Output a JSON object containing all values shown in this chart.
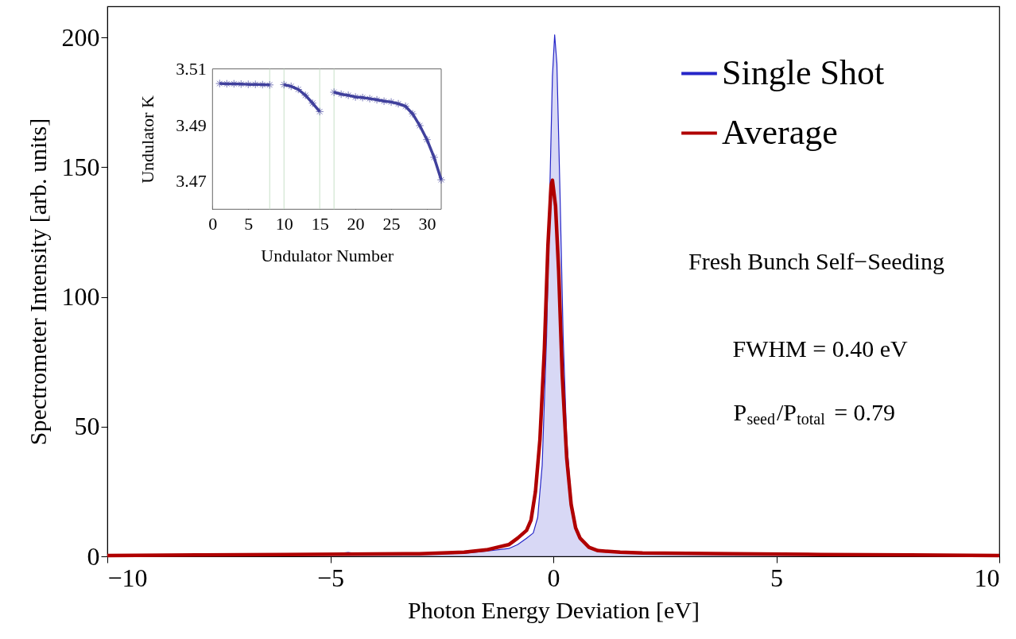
{
  "chart_data": [
    {
      "type": "line",
      "xlabel": "Photon Energy Deviation [eV]",
      "ylabel": "Spectrometer Intensity [arb. units]",
      "xlim": [
        -10,
        10
      ],
      "ylim": [
        0,
        212
      ],
      "xticks": [
        -10,
        -5,
        0,
        5,
        10
      ],
      "yticks": [
        0,
        50,
        100,
        150,
        200
      ],
      "grid": false,
      "legend": "top right",
      "annotations": [
        "Fresh Bunch Self−Seeding",
        "FWHM = 0.40 eV",
        "P$_{seed}$/P$_{total}$ = 0.79"
      ],
      "series": [
        {
          "name": "Single Shot",
          "type": "area",
          "color": "#2626c8",
          "x": [
            -10,
            -8,
            -6,
            -5,
            -4.6,
            -4.3,
            -3,
            -2,
            -1.5,
            -1,
            -0.8,
            -0.6,
            -0.45,
            -0.35,
            -0.25,
            -0.15,
            -0.08,
            -0.02,
            0.03,
            0.08,
            0.15,
            0.22,
            0.3,
            0.4,
            0.5,
            0.6,
            0.8,
            1,
            1.5,
            2,
            4,
            6,
            8,
            10
          ],
          "values": [
            0.3,
            0.4,
            0.6,
            0.8,
            1.5,
            0.8,
            0.8,
            1.2,
            2,
            3,
            4.5,
            7,
            9,
            15,
            35,
            85,
            140,
            185,
            201,
            190,
            140,
            85,
            45,
            22,
            12,
            7,
            3.5,
            2,
            1.3,
            1,
            0.8,
            0.6,
            0.4,
            0.3
          ]
        },
        {
          "name": "Average",
          "type": "line",
          "color": "#b00000",
          "x": [
            -10,
            -8,
            -6,
            -4,
            -3,
            -2,
            -1.5,
            -1,
            -0.8,
            -0.6,
            -0.5,
            -0.4,
            -0.3,
            -0.2,
            -0.12,
            -0.05,
            -0.02,
            0.05,
            0.12,
            0.2,
            0.3,
            0.4,
            0.5,
            0.6,
            0.8,
            1,
            1.5,
            2,
            4,
            6,
            8,
            10
          ],
          "values": [
            0.3,
            0.5,
            0.7,
            0.9,
            1,
            1.6,
            2.5,
            4.5,
            7,
            10,
            14,
            25,
            45,
            80,
            120,
            143,
            145,
            135,
            110,
            70,
            38,
            20,
            11,
            7,
            3.5,
            2.2,
            1.6,
            1.3,
            1,
            0.7,
            0.5,
            0.3
          ]
        }
      ]
    },
    {
      "type": "line",
      "xlabel": "Undulator Number",
      "ylabel": "Undulator K",
      "xlim": [
        0,
        32
      ],
      "ylim": [
        3.46,
        3.51
      ],
      "xticks": [
        0,
        5,
        10,
        15,
        20,
        25,
        30
      ],
      "yticks": [
        3.47,
        3.49,
        3.51
      ],
      "grid": false,
      "marker": "cross",
      "ref_lines": [
        {
          "axis": "x",
          "value": 8,
          "color": "#c8e0c8"
        },
        {
          "axis": "x",
          "value": 10,
          "color": "#c8e0c8"
        },
        {
          "axis": "x",
          "value": 15,
          "color": "#c8e0c8"
        },
        {
          "axis": "x",
          "value": 17,
          "color": "#c8e0c8"
        }
      ],
      "series": [
        {
          "color": "#40409c",
          "x": [
            1,
            2,
            3,
            4,
            5,
            6,
            7,
            8,
            9,
            10,
            11,
            12,
            13,
            14,
            15,
            16,
            17,
            18,
            19,
            20,
            21,
            22,
            23,
            24,
            25,
            26,
            27,
            28,
            29,
            30,
            31,
            32
          ],
          "values": [
            3.5048,
            3.5047,
            3.5047,
            3.5046,
            3.5045,
            3.5045,
            3.5044,
            3.5043,
            null,
            3.5044,
            3.5038,
            3.5027,
            3.5006,
            3.4978,
            3.4948,
            null,
            3.5017,
            3.501,
            3.5006,
            3.5,
            3.4998,
            3.4994,
            3.499,
            3.4985,
            3.4982,
            3.4976,
            3.4967,
            3.494,
            3.4898,
            3.4848,
            3.4785,
            3.4705
          ]
        }
      ]
    }
  ]
}
